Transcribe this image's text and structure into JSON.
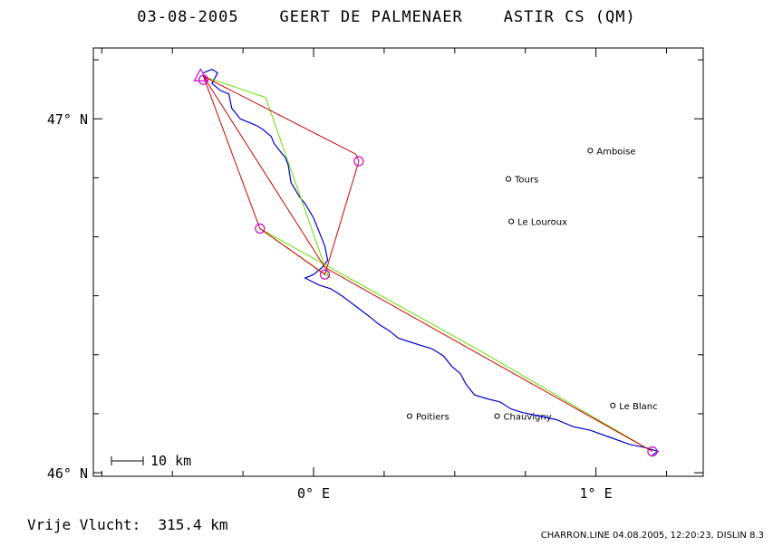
{
  "title": "03-08-2005    GEERT DE PALMENAER    ASTIR CS (QM)",
  "footer": {
    "distance_label": "Vrije Vlucht:",
    "distance_value": "315.4 km",
    "credits": "CHARRON.LINE 04.08.2005, 12:20:23, DISLIN 8.3"
  },
  "scale_bar": {
    "label": "10 km",
    "km": 10
  },
  "axes": {
    "lon_range": [
      -0.78,
      1.38
    ],
    "lat_range": [
      45.99,
      47.2
    ],
    "lon_ticks": [
      {
        "value": 0,
        "label": "0° E"
      },
      {
        "value": 1,
        "label": "1° E"
      }
    ],
    "lat_ticks": [
      {
        "value": 47,
        "label": "47° N"
      },
      {
        "value": 46,
        "label": "46° N"
      }
    ]
  },
  "colors": {
    "track": "#0000cc",
    "task_red": "#cc0000",
    "task_green": "#66dd00",
    "marker": "#cc00cc"
  },
  "cities": [
    {
      "name": "Amboise",
      "lon": 0.98,
      "lat": 46.91
    },
    {
      "name": "Tours",
      "lon": 0.69,
      "lat": 46.83
    },
    {
      "name": "Le Louroux",
      "lon": 0.7,
      "lat": 46.71
    },
    {
      "name": "Poitiers",
      "lon": 0.34,
      "lat": 46.16
    },
    {
      "name": "Chauvigny",
      "lon": 0.65,
      "lat": 46.16
    },
    {
      "name": "Le Blanc",
      "lon": 1.06,
      "lat": 46.19
    }
  ],
  "turnpoints": [
    {
      "lon": -0.19,
      "lat": 46.69
    },
    {
      "lon": 0.04,
      "lat": 46.56
    },
    {
      "lon": 0.16,
      "lat": 46.88
    },
    {
      "lon": -0.39,
      "lat": 47.11
    },
    {
      "lon": 1.2,
      "lat": 46.06
    }
  ],
  "start": {
    "lon": -0.4,
    "lat": 47.12
  },
  "route_red": [
    [
      -0.39,
      47.12
    ],
    [
      -0.19,
      46.69
    ],
    [
      0.04,
      46.56
    ],
    [
      0.16,
      46.88
    ],
    [
      0.15,
      46.9
    ],
    [
      -0.39,
      47.12
    ],
    [
      0.04,
      46.58
    ],
    [
      1.2,
      46.06
    ]
  ],
  "route_green": [
    [
      -0.39,
      47.12
    ],
    [
      -0.17,
      47.06
    ],
    [
      0.05,
      46.56
    ],
    [
      0.06,
      46.55
    ],
    [
      -0.19,
      46.69
    ],
    [
      0.6,
      46.34
    ],
    [
      1.2,
      46.06
    ]
  ],
  "track": [
    [
      -0.39,
      47.13
    ],
    [
      -0.36,
      47.14
    ],
    [
      -0.34,
      47.13
    ],
    [
      -0.36,
      47.1
    ],
    [
      -0.33,
      47.08
    ],
    [
      -0.3,
      47.07
    ],
    [
      -0.29,
      47.03
    ],
    [
      -0.27,
      47.01
    ],
    [
      -0.26,
      47.0
    ],
    [
      -0.23,
      46.99
    ],
    [
      -0.2,
      46.98
    ],
    [
      -0.18,
      46.97
    ],
    [
      -0.15,
      46.95
    ],
    [
      -0.14,
      46.93
    ],
    [
      -0.12,
      46.91
    ],
    [
      -0.1,
      46.89
    ],
    [
      -0.09,
      46.87
    ],
    [
      -0.08,
      46.82
    ],
    [
      -0.05,
      46.78
    ],
    [
      -0.03,
      46.76
    ],
    [
      0.0,
      46.72
    ],
    [
      0.02,
      46.68
    ],
    [
      0.04,
      46.64
    ],
    [
      0.05,
      46.6
    ],
    [
      0.03,
      46.58
    ],
    [
      0.0,
      46.56
    ],
    [
      -0.03,
      46.55
    ],
    [
      0.02,
      46.53
    ],
    [
      0.06,
      46.52
    ],
    [
      0.1,
      46.5
    ],
    [
      0.15,
      46.47
    ],
    [
      0.2,
      46.44
    ],
    [
      0.23,
      46.42
    ],
    [
      0.27,
      46.4
    ],
    [
      0.3,
      46.38
    ],
    [
      0.34,
      46.37
    ],
    [
      0.38,
      46.36
    ],
    [
      0.42,
      46.35
    ],
    [
      0.46,
      46.33
    ],
    [
      0.49,
      46.3
    ],
    [
      0.52,
      46.28
    ],
    [
      0.54,
      46.25
    ],
    [
      0.57,
      46.22
    ],
    [
      0.61,
      46.21
    ],
    [
      0.66,
      46.2
    ],
    [
      0.7,
      46.18
    ],
    [
      0.74,
      46.17
    ],
    [
      0.8,
      46.16
    ],
    [
      0.86,
      46.15
    ],
    [
      0.92,
      46.13
    ],
    [
      0.98,
      46.12
    ],
    [
      1.05,
      46.1
    ],
    [
      1.12,
      46.08
    ],
    [
      1.18,
      46.07
    ],
    [
      1.22,
      46.06
    ],
    [
      1.2,
      46.05
    ]
  ]
}
